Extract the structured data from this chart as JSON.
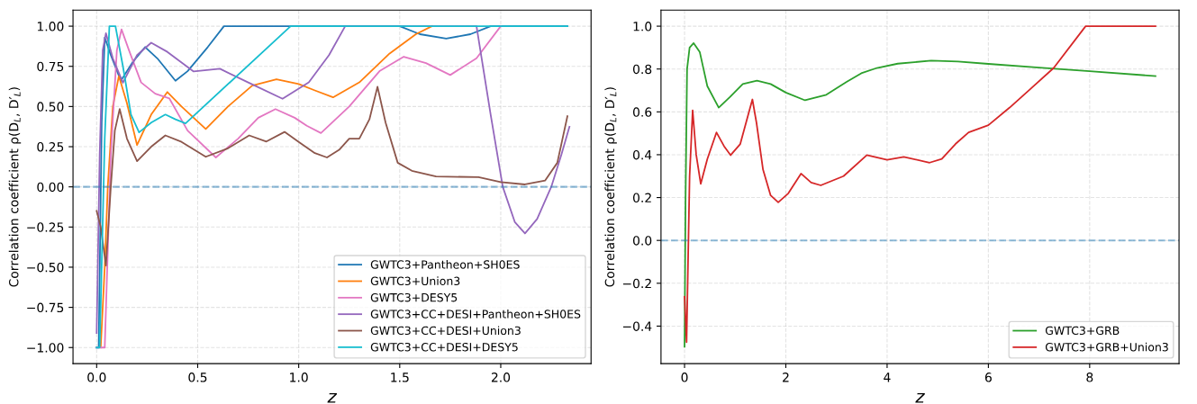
{
  "chart_data": [
    {
      "type": "line",
      "xlabel": "z",
      "ylabel": "Correlation coefficient ρ(D$_{L}$, D′$_{L}$)",
      "xlim": [
        -0.117,
        2.447
      ],
      "ylim": [
        -1.1,
        1.1
      ],
      "xticks": [
        {
          "value": 0,
          "label": "0.0"
        },
        0.5,
        {
          "value": 1,
          "label": "1.0"
        },
        1.5,
        {
          "value": 2,
          "label": "2.0"
        }
      ],
      "yticks": [
        {
          "value": -1,
          "label": "−1.00"
        },
        {
          "value": -0.75,
          "label": "−0.75"
        },
        {
          "value": -0.5,
          "label": "−0.50"
        },
        {
          "value": -0.25,
          "label": "−0.25"
        },
        {
          "value": 0,
          "label": "0.00"
        },
        {
          "value": 0.25,
          "label": "0.25"
        },
        {
          "value": 0.5,
          "label": "0.50"
        },
        {
          "value": 0.75,
          "label": "0.75"
        },
        {
          "value": 1,
          "label": "1.00"
        }
      ],
      "grid": true,
      "legend": "lower right",
      "ref_lines": [
        {
          "axis": "y",
          "value": 0,
          "color": "#1f77b4",
          "line_style": "dashed"
        }
      ],
      "series": [
        {
          "name": "GWTC3+Pantheon+SH0ES",
          "color": "#1f77b4",
          "x": [
            0,
            0.01,
            0.025,
            0.04,
            0.07,
            0.12,
            0.18,
            0.24,
            0.3,
            0.39,
            0.45,
            0.55,
            0.63,
            1.0,
            1.5,
            1.6,
            1.73,
            1.85,
            1.95,
            2.33
          ],
          "values": [
            -1,
            -1,
            0.4,
            0.93,
            0.82,
            0.66,
            0.78,
            0.87,
            0.8,
            0.66,
            0.72,
            0.87,
            1,
            1,
            1,
            0.95,
            0.923,
            0.95,
            1,
            1
          ]
        },
        {
          "name": "GWTC3+Union3",
          "color": "#ff7f0e",
          "x": [
            0.02,
            0.04,
            0.055,
            0.08,
            0.11,
            0.15,
            0.2,
            0.27,
            0.35,
            0.42,
            0.54,
            0.65,
            0.77,
            0.89,
            1.0,
            1.08,
            1.17,
            1.3,
            1.45,
            1.58,
            1.66
          ],
          "values": [
            -1,
            -0.5,
            0,
            0.5,
            0.69,
            0.52,
            0.26,
            0.45,
            0.59,
            0.5,
            0.36,
            0.5,
            0.63,
            0.67,
            0.64,
            0.6,
            0.557,
            0.65,
            0.83,
            0.95,
            1
          ]
        },
        {
          "name": "GWTC3+DESY5",
          "color": "#e377c2",
          "x": [
            0,
            0.04,
            0.07,
            0.1,
            0.123,
            0.16,
            0.22,
            0.29,
            0.36,
            0.45,
            0.59,
            0.7,
            0.8,
            0.885,
            0.98,
            1.04,
            1.11,
            1.25,
            1.4,
            1.52,
            1.63,
            1.75,
            1.88,
            2.0
          ],
          "values": [
            -1,
            -1,
            0.2,
            0.85,
            0.98,
            0.85,
            0.65,
            0.58,
            0.55,
            0.35,
            0.183,
            0.3,
            0.43,
            0.484,
            0.43,
            0.38,
            0.335,
            0.5,
            0.72,
            0.81,
            0.77,
            0.696,
            0.8,
            1
          ]
        },
        {
          "name": "GWTC3+CC+DESI+Pantheon+SH0ES",
          "color": "#9467bd",
          "x": [
            0,
            0.015,
            0.03,
            0.046,
            0.08,
            0.13,
            0.2,
            0.27,
            0.35,
            0.48,
            0.61,
            0.75,
            0.92,
            1.05,
            1.15,
            1.23,
            1.88,
            1.95,
            2.01,
            2.07,
            2.12,
            2.18,
            2.25,
            2.3,
            2.34
          ],
          "values": [
            -0.91,
            0.2,
            0.85,
            0.956,
            0.8,
            0.648,
            0.82,
            0.897,
            0.84,
            0.718,
            0.735,
            0.65,
            0.548,
            0.65,
            0.82,
            1,
            1,
            0.45,
            0,
            -0.22,
            -0.29,
            -0.2,
            0,
            0.2,
            0.374
          ]
        },
        {
          "name": "GWTC3+CC+DESI+Union3",
          "color": "#8c564b",
          "x": [
            0,
            0.02,
            0.046,
            0.07,
            0.09,
            0.114,
            0.15,
            0.2,
            0.27,
            0.34,
            0.42,
            0.54,
            0.65,
            0.755,
            0.84,
            0.93,
            1.0,
            1.08,
            1.14,
            1.2,
            1.25,
            1.3,
            1.35,
            1.39,
            1.43,
            1.49,
            1.56,
            1.68,
            1.89,
            2.0,
            2.12,
            2.22,
            2.28,
            2.33
          ],
          "values": [
            -0.15,
            -0.25,
            -0.49,
            0.0,
            0.35,
            0.484,
            0.3,
            0.16,
            0.25,
            0.32,
            0.28,
            0.187,
            0.24,
            0.32,
            0.282,
            0.342,
            0.28,
            0.21,
            0.183,
            0.23,
            0.3,
            0.3,
            0.42,
            0.623,
            0.4,
            0.15,
            0.1,
            0.065,
            0.06,
            0.03,
            0.015,
            0.04,
            0.15,
            0.44
          ]
        },
        {
          "name": "GWTC3+CC+DESI+DESY5",
          "color": "#17becf",
          "x": [
            0,
            0.015,
            0.04,
            0.063,
            0.093,
            0.13,
            0.17,
            0.21,
            0.27,
            0.34,
            0.39,
            0.44,
            0.96,
            2.33
          ],
          "values": [
            -1,
            -1,
            0.3,
            1,
            1,
            0.75,
            0.45,
            0.339,
            0.4,
            0.45,
            0.42,
            0.395,
            1,
            1
          ]
        }
      ]
    },
    {
      "type": "line",
      "xlabel": "z",
      "ylabel": "Correlation coefficient ρ(D$_{L}$, D′$_{L}$)",
      "xlim": [
        -0.465,
        9.765
      ],
      "ylim": [
        -0.575,
        1.075
      ],
      "xticks": [
        0,
        2,
        4,
        6,
        8
      ],
      "yticks": [
        {
          "value": -0.4,
          "label": "−0.4"
        },
        {
          "value": -0.2,
          "label": "−0.2"
        },
        {
          "value": 0,
          "label": "0.0"
        },
        0.2,
        0.4,
        0.6,
        0.8,
        {
          "value": 1,
          "label": "1.0"
        }
      ],
      "grid": true,
      "legend": "lower right",
      "ref_lines": [
        {
          "axis": "y",
          "value": 0,
          "color": "#1f77b4",
          "line_style": "dashed"
        }
      ],
      "series": [
        {
          "name": "GWTC3+GRB",
          "color": "#2ca02c",
          "x": [
            0,
            0.02,
            0.05,
            0.1,
            0.18,
            0.3,
            0.45,
            0.675,
            0.9,
            1.15,
            1.43,
            1.7,
            2.0,
            2.38,
            2.8,
            3.2,
            3.49,
            3.8,
            4.21,
            4.87,
            5.4,
            6.0,
            7.0,
            8.0,
            9.3
          ],
          "values": [
            -0.496,
            0.2,
            0.8,
            0.9,
            0.921,
            0.88,
            0.72,
            0.62,
            0.67,
            0.73,
            0.746,
            0.73,
            0.69,
            0.654,
            0.68,
            0.74,
            0.78,
            0.805,
            0.825,
            0.839,
            0.835,
            0.824,
            0.807,
            0.79,
            0.767
          ]
        },
        {
          "name": "GWTC3+GRB+Union3",
          "color": "#d62728",
          "x": [
            0,
            0.04,
            0.1,
            0.16,
            0.23,
            0.32,
            0.45,
            0.63,
            0.78,
            0.91,
            1.1,
            1.25,
            1.34,
            1.42,
            1.55,
            1.7,
            1.85,
            2.05,
            2.3,
            2.5,
            2.69,
            3.14,
            3.6,
            4.0,
            4.33,
            4.84,
            5.08,
            5.35,
            5.61,
            6.0,
            6.42,
            6.84,
            7.29,
            7.92,
            9.3
          ],
          "values": [
            -0.263,
            -0.475,
            0.3,
            0.607,
            0.4,
            0.264,
            0.38,
            0.504,
            0.44,
            0.398,
            0.45,
            0.58,
            0.658,
            0.55,
            0.33,
            0.21,
            0.178,
            0.22,
            0.312,
            0.27,
            0.257,
            0.3,
            0.398,
            0.376,
            0.39,
            0.363,
            0.38,
            0.45,
            0.504,
            0.538,
            0.62,
            0.709,
            0.805,
            1,
            1
          ]
        }
      ]
    }
  ]
}
